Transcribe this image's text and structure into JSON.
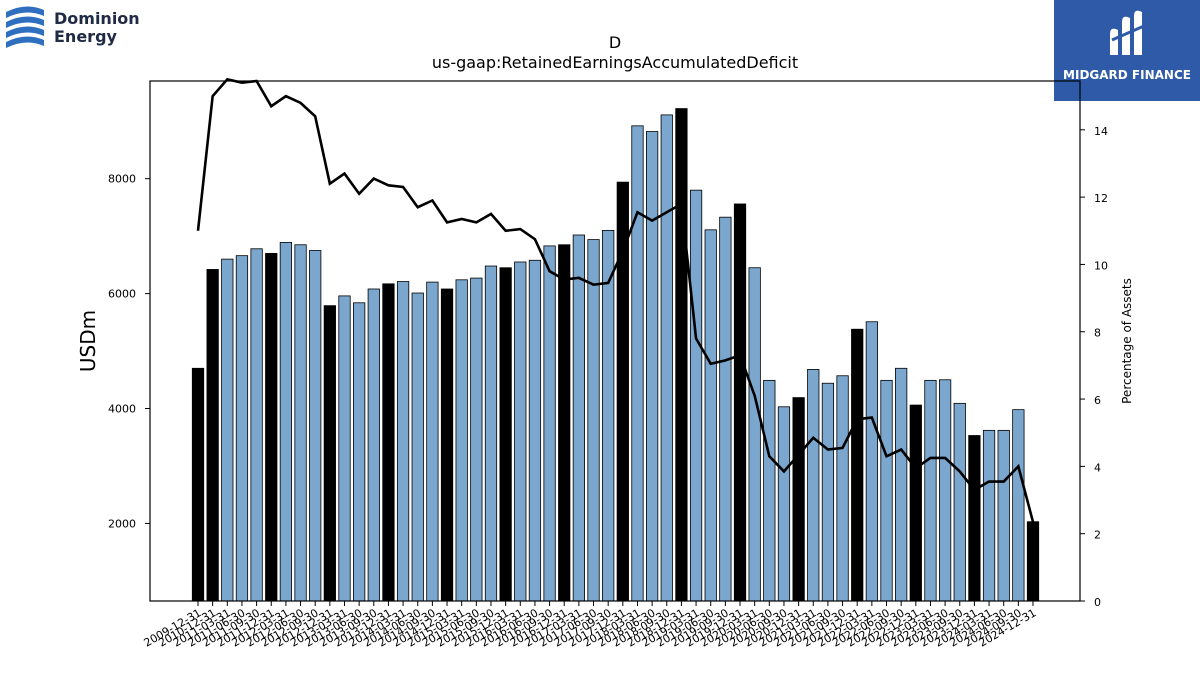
{
  "branding": {
    "left_logo_text": "Dominion\nEnergy",
    "right_logo_text": "MIDGARD FINANCE"
  },
  "colors": {
    "bar_regular": "#7ba7cf",
    "bar_highlight": "#000000",
    "line": "#000000",
    "right_logo_bg": "#2e5aa8"
  },
  "chart_data": {
    "type": "bar",
    "title": "D",
    "subtitle": "us-gaap:RetainedEarningsAccumulatedDeficit",
    "ylabel": "USDm",
    "y2label": "Percentage of Assets",
    "ylim": [
      650,
      9700
    ],
    "y2lim": [
      0,
      15.45
    ],
    "yticks": [
      2000,
      4000,
      6000,
      8000
    ],
    "y2ticks": [
      0,
      2,
      4,
      6,
      8,
      10,
      12,
      14
    ],
    "categories": [
      "2009-12-31",
      "2010-12-31",
      "2011-03-31",
      "2011-06-30",
      "2011-09-30",
      "2011-12-31",
      "2012-03-31",
      "2012-06-30",
      "2012-09-30",
      "2012-12-31",
      "2013-03-31",
      "2013-06-30",
      "2013-09-30",
      "2013-12-31",
      "2014-03-31",
      "2014-06-30",
      "2014-09-30",
      "2014-12-31",
      "2015-03-31",
      "2015-06-30",
      "2015-09-30",
      "2015-12-31",
      "2016-03-31",
      "2016-06-30",
      "2016-09-30",
      "2016-12-31",
      "2017-03-31",
      "2017-06-30",
      "2017-09-30",
      "2017-12-31",
      "2018-03-31",
      "2018-06-30",
      "2018-09-30",
      "2018-12-31",
      "2019-03-31",
      "2019-06-30",
      "2019-09-30",
      "2019-12-31",
      "2020-03-31",
      "2020-06-30",
      "2020-09-30",
      "2020-12-31",
      "2021-03-31",
      "2021-06-30",
      "2021-09-30",
      "2021-12-31",
      "2022-03-31",
      "2022-06-30",
      "2022-09-30",
      "2022-12-31",
      "2023-03-31",
      "2023-06-30",
      "2023-09-30",
      "2023-12-31",
      "2024-03-31",
      "2024-06-30",
      "2024-09-30",
      "2024-12-31"
    ],
    "series": [
      {
        "values": [
          4700,
          6420,
          6600,
          6660,
          6780,
          6700,
          6890,
          6850,
          6750,
          5790,
          5960,
          5840,
          6080,
          6170,
          6210,
          6010,
          6200,
          6080,
          6240,
          6270,
          6480,
          6450,
          6550,
          6580,
          6830,
          6850,
          7020,
          6940,
          7100,
          7940,
          8920,
          8820,
          9110,
          9220,
          7800,
          7110,
          7330,
          7560,
          6450,
          4490,
          4030,
          4190,
          4680,
          4440,
          4570,
          5380,
          5510,
          4490,
          4700,
          4060,
          4490,
          4500,
          4090,
          3530,
          3620,
          3620,
          3980,
          2030
        ],
        "highlight": [
          true,
          true,
          false,
          false,
          false,
          true,
          false,
          false,
          false,
          true,
          false,
          false,
          false,
          true,
          false,
          false,
          false,
          true,
          false,
          false,
          false,
          true,
          false,
          false,
          false,
          true,
          false,
          false,
          false,
          true,
          false,
          false,
          false,
          true,
          false,
          false,
          false,
          true,
          false,
          false,
          false,
          true,
          false,
          false,
          false,
          true,
          false,
          false,
          false,
          true,
          false,
          false,
          false,
          true,
          false,
          false,
          false,
          true
        ]
      },
      {
        "values": [
          11.0,
          15.0,
          15.5,
          15.4,
          15.45,
          14.7,
          15.0,
          14.8,
          14.4,
          12.4,
          12.7,
          12.1,
          12.55,
          12.35,
          12.3,
          11.7,
          11.9,
          11.25,
          11.35,
          11.25,
          11.5,
          11.0,
          11.05,
          10.75,
          9.8,
          9.55,
          9.6,
          9.4,
          9.45,
          10.4,
          11.55,
          11.3,
          11.55,
          11.8,
          7.8,
          7.05,
          7.15,
          7.3,
          6.1,
          4.3,
          3.85,
          4.35,
          4.85,
          4.5,
          4.55,
          5.4,
          5.45,
          4.3,
          4.5,
          3.95,
          4.25,
          4.25,
          3.85,
          3.3,
          3.55,
          3.55,
          4.0,
          2.35
        ]
      }
    ]
  }
}
